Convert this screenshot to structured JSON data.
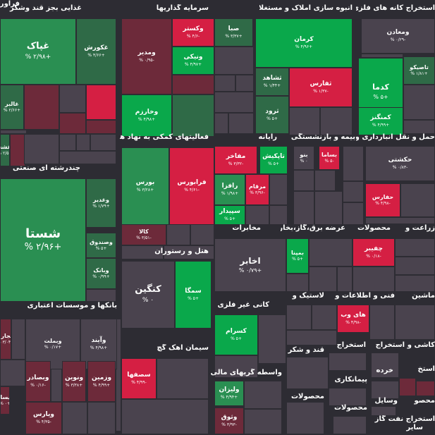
{
  "colors": {
    "background": "#2d2c33",
    "neutral": "#4a434e",
    "up_strong": "#0aa84b",
    "up": "#2a8f52",
    "up_dim": "#2f6a47",
    "down_strong": "#d51f43",
    "down": "#a8253d",
    "down_dim": "#6d2a3a"
  },
  "sectors": [
    {
      "id": "food",
      "label": "غذایی بجز قند وشکر"
    },
    {
      "id": "oilproducts",
      "label": "فرآورده های نفتی"
    },
    {
      "id": "investment",
      "label": "سرمایه گذاریها"
    },
    {
      "id": "realestate",
      "label": "انبوه سازی املاک و مستغلات"
    },
    {
      "id": "mining",
      "label": "استخراج کانه های فلزی"
    },
    {
      "id": "multidisc",
      "label": "چندرشته ای صنعتی"
    },
    {
      "id": "financial",
      "label": "فعالیتهای کمکی به نهاد های"
    },
    {
      "id": "computer",
      "label": "رایانه"
    },
    {
      "id": "insurance",
      "label": "بیمه و بازنشستگی"
    },
    {
      "id": "transport",
      "label": "حمل و نقل انبارداری و"
    },
    {
      "id": "telecom",
      "label": "مخابرات"
    },
    {
      "id": "power",
      "label": "عرضه برق،گاز،بخار و"
    },
    {
      "id": "products",
      "label": "محصولات"
    },
    {
      "id": "agri",
      "label": "زراعت و"
    },
    {
      "id": "hotel",
      "label": "هتل و رستوران"
    },
    {
      "id": "nonmetal",
      "label": "کانی غیر فلزی"
    },
    {
      "id": "rubber",
      "label": "لاستیک و"
    },
    {
      "id": "ict",
      "label": "اطلاعات و"
    },
    {
      "id": "engineering",
      "label": "فنی و"
    },
    {
      "id": "machinery",
      "label": "ماشین"
    },
    {
      "id": "banks",
      "label": "بانکها و موسسات اعتباری"
    },
    {
      "id": "cement",
      "label": "سیمان آهک گچ"
    },
    {
      "id": "sugar",
      "label": "قند و شکر"
    },
    {
      "id": "extract1",
      "label": "استخراج"
    },
    {
      "id": "extract2",
      "label": "استخراج"
    },
    {
      "id": "tiles",
      "label": "کاشی و"
    },
    {
      "id": "brokers",
      "label": "واسطه گریهای مالی و"
    },
    {
      "id": "products2",
      "label": "محصولات"
    },
    {
      "id": "contractors",
      "label": "پیمانکاری"
    },
    {
      "id": "products3",
      "label": "محصولات"
    },
    {
      "id": "extract3",
      "label": "استخ"
    },
    {
      "id": "retail",
      "label": "خرده"
    },
    {
      "id": "products4",
      "label": "محصو"
    },
    {
      "id": "auto",
      "label": "وسایل"
    },
    {
      "id": "oilext",
      "label": "استخراج نفت گاز"
    },
    {
      "id": "other",
      "label": "سایر"
    }
  ],
  "tiles": [
    {
      "name": "غپاک",
      "change": "+۲/۹۸ %"
    },
    {
      "name": "غکورش",
      "change": "+۴/۶۶ %"
    },
    {
      "name": "غالبر",
      "change": "+۲/۶۶ %"
    },
    {
      "name": "غشه",
      "change": "+۲/۵ %"
    },
    {
      "name": "ومدیر",
      "change": "-۰/۹۵ %"
    },
    {
      "name": "وکستر",
      "change": "-۴/۶ %"
    },
    {
      "name": "صبا",
      "change": "+۳/۳۷ %"
    },
    {
      "name": "ونیکی",
      "change": "+۴/۹۷ %"
    },
    {
      "name": "وخارزم",
      "change": "+۴/۹۸ %"
    },
    {
      "name": "کرمان",
      "change": "+۴/۹۶ %"
    },
    {
      "name": "ثشاهد",
      "change": "+۱/۴۴ %"
    },
    {
      "name": "ثفارس",
      "change": "-۱/۳۷ %"
    },
    {
      "name": "ثرود",
      "change": "+۵ %"
    },
    {
      "name": "ومعادن",
      "change": "-۰/۲۹ %"
    },
    {
      "name": "تاصیکو",
      "change": "+۱/۸۱ %"
    },
    {
      "name": "کدما",
      "change": "+۵ %"
    },
    {
      "name": "کمنگنز",
      "change": "+۴/۹۹ %"
    },
    {
      "name": "شستا",
      "change": "+۲/۹۶ %"
    },
    {
      "name": "وغدیر",
      "change": "+۱/۷۹ %"
    },
    {
      "name": "وصندوق",
      "change": "+۵ %"
    },
    {
      "name": "وبانک",
      "change": "+۰/۹۹ %"
    },
    {
      "name": "بورس",
      "change": "+۳/۲۸ %"
    },
    {
      "name": "فرابورس",
      "change": "-۴/۶۱ %"
    },
    {
      "name": "کالا",
      "change": "-۳/۵۱ %"
    },
    {
      "name": "مفاخر",
      "change": "-۳/۳۲ %"
    },
    {
      "name": "تاپکیش",
      "change": "+۵ %"
    },
    {
      "name": "رافزا",
      "change": "+۱/۹۸ %"
    },
    {
      "name": "مرقام",
      "change": "-۳/۹۶ %"
    },
    {
      "name": "سپیدار",
      "change": "+۵ %"
    },
    {
      "name": "بنو",
      "change": "۰ %"
    },
    {
      "name": "بساما",
      "change": "-۵ %"
    },
    {
      "name": "حکشتی",
      "change": "-۰/۸۳ %"
    },
    {
      "name": "حفارس",
      "change": "-۴/۹۸ %"
    },
    {
      "name": "اخابر",
      "change": "+۰/۷۹ %"
    },
    {
      "name": "بمپنا",
      "change": "+۵ %"
    },
    {
      "name": "چفیبر",
      "change": "-۰/۱۸ %"
    },
    {
      "name": "کنگین",
      "change": "۰ %"
    },
    {
      "name": "سمگا",
      "change": "+۵ %"
    },
    {
      "name": "کسرام",
      "change": "+۵ %"
    },
    {
      "name": "های وب",
      "change": "-۴/۹۸ %"
    },
    {
      "name": "وتجارت",
      "change": "+۳/۰۴ %"
    },
    {
      "name": "ویساپا",
      "change": "+۰ %"
    },
    {
      "name": "وبملت",
      "change": "+۰/۱۷ %"
    },
    {
      "name": "وآیند",
      "change": "+۴/۹۸ %"
    },
    {
      "name": "وبصادر",
      "change": "-۰/۱۶ %"
    },
    {
      "name": "ونوین",
      "change": "+۳/۳۸ %"
    },
    {
      "name": "وزمین",
      "change": "+۴/۹۹ %"
    },
    {
      "name": "ویارس",
      "change": "-۴/۳۵ %"
    },
    {
      "name": "سصفها",
      "change": "-۴/۹۹ %"
    },
    {
      "name": "ولیزان",
      "change": "+۴/۹۴ %"
    },
    {
      "name": "وثوق",
      "change": "-۳/۹۳ %"
    }
  ]
}
